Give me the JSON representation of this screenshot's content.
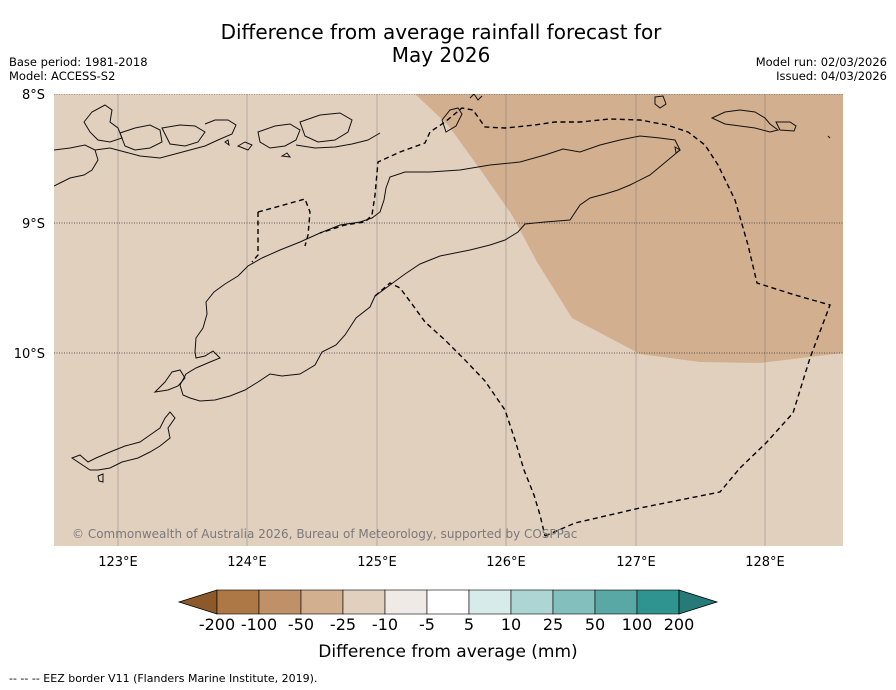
{
  "title_line1": "Difference from average rainfall forecast for",
  "title_line2": "May 2026",
  "base_period": "Base period: 1981-2018",
  "model": "Model: ACCESS-S2",
  "model_run": "Model run: 02/03/2026",
  "issued": "Issued: 04/03/2026",
  "copyright": "© Commonwealth of Australia 2026, Bureau of Meteorology, supported by COSPPac",
  "lat_labels": [
    "8°S",
    "9°S",
    "10°S"
  ],
  "lon_labels": [
    "123°E",
    "124°E",
    "125°E",
    "126°E",
    "127°E",
    "128°E"
  ],
  "colorbar": {
    "title": "Difference from average (mm)",
    "ticks": [
      "-200",
      "-100",
      "-50",
      "-25",
      "-10",
      "-5",
      "5",
      "10",
      "25",
      "50",
      "100",
      "200"
    ],
    "colors": [
      "#8c5a2a",
      "#ad7845",
      "#c09169",
      "#d2af8e",
      "#e2d0bf",
      "#efeae6",
      "#ffffff",
      "#d7ecea",
      "#acd5d3",
      "#83bfbd",
      "#59a8a6",
      "#2f9390",
      "#267a78"
    ]
  },
  "map_colors": {
    "light_brown": "#e2d0bf",
    "mid_brown": "#d2af8e"
  },
  "footer": "--  --  -- EEZ border V11 (Flanders Marine Institute, 2019).",
  "chart_data": {
    "type": "map",
    "variable": "Difference from average rainfall (mm)",
    "period": "May 2026",
    "lat_range": [
      -11.5,
      -8.0
    ],
    "lon_range": [
      122.5,
      128.6
    ],
    "regions": [
      {
        "category": "-25 to -10",
        "area": "most of map (west and south)"
      },
      {
        "category": "-50 to -25",
        "area": "north-east (north of Timor-Leste, ~125.3°E–128.6°E, 8°S–10°S)"
      }
    ]
  }
}
